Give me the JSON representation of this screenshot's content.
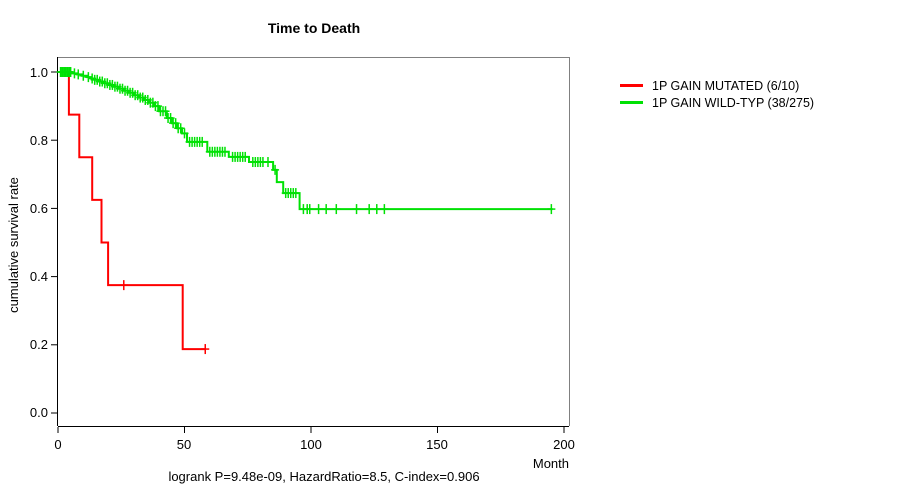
{
  "chart_data": {
    "type": "line",
    "subtype": "kaplan-meier-step",
    "title": "Time to Death",
    "xlabel": "Month",
    "ylabel": "cumulative survival rate",
    "annotation": "logrank P=9.48e-09, HazardRatio=8.5, C-index=0.906",
    "xlim": [
      0,
      200
    ],
    "ylim": [
      0.0,
      1.0
    ],
    "x_ticks": [
      0,
      50,
      100,
      150,
      200
    ],
    "x_tick_labels": [
      "0",
      "50",
      "100",
      "150",
      "200"
    ],
    "y_ticks": [
      0.0,
      0.2,
      0.4,
      0.6,
      0.8,
      1.0
    ],
    "y_tick_labels": [
      "0.0",
      "0.2",
      "0.4",
      "0.6",
      "0.8",
      "1.0"
    ],
    "grid": false,
    "legend_position": "right-outside",
    "series": [
      {
        "name": "1P GAIN MUTATED (6/10)",
        "color": "#ff0000",
        "end_month": 58.5,
        "steps": [
          [
            0,
            1.0
          ],
          [
            4.3,
            0.875
          ],
          [
            8.4,
            0.75
          ],
          [
            13.5,
            0.625
          ],
          [
            17.2,
            0.5
          ],
          [
            19.8,
            0.375
          ],
          [
            49.3,
            0.1875
          ]
        ],
        "censor_months": [
          26,
          58.2
        ]
      },
      {
        "name": "1P GAIN WILD-TYP (38/275)",
        "color": "#00e104",
        "end_month": 195.5,
        "steps": [
          [
            0,
            1.0
          ],
          [
            5.5,
            0.996
          ],
          [
            7.5,
            0.993
          ],
          [
            9.5,
            0.989
          ],
          [
            11.5,
            0.985
          ],
          [
            13,
            0.981
          ],
          [
            14.5,
            0.977
          ],
          [
            16,
            0.972
          ],
          [
            18,
            0.967
          ],
          [
            20,
            0.962
          ],
          [
            22,
            0.957
          ],
          [
            24,
            0.951
          ],
          [
            26,
            0.945
          ],
          [
            28,
            0.939
          ],
          [
            30,
            0.932
          ],
          [
            32,
            0.925
          ],
          [
            34,
            0.918
          ],
          [
            36,
            0.91
          ],
          [
            38,
            0.9
          ],
          [
            40,
            0.885
          ],
          [
            43,
            0.865
          ],
          [
            45,
            0.85
          ],
          [
            47,
            0.835
          ],
          [
            49,
            0.82
          ],
          [
            51,
            0.795
          ],
          [
            59,
            0.766
          ],
          [
            67.5,
            0.751
          ],
          [
            75.5,
            0.736
          ],
          [
            85,
            0.713
          ],
          [
            86.5,
            0.677
          ],
          [
            89,
            0.645
          ],
          [
            95.5,
            0.598
          ]
        ],
        "censor_months": [
          1,
          1.5,
          2,
          2.5,
          3,
          3.5,
          4,
          4.5,
          5,
          6.5,
          8,
          10,
          12,
          13.5,
          14.5,
          15.5,
          16.5,
          17.5,
          18.5,
          19.5,
          20.5,
          21.5,
          22.5,
          23.5,
          24.5,
          25.5,
          26.5,
          27.5,
          28.5,
          29.5,
          30.5,
          31.5,
          32.5,
          33.5,
          34.5,
          35.5,
          36.5,
          37.5,
          38.5,
          39.5,
          40.5,
          41.5,
          42.5,
          43.5,
          44.5,
          45.5,
          46.5,
          47.5,
          48.5,
          50,
          52,
          53,
          54,
          55,
          56,
          57,
          60,
          61,
          62,
          63,
          64,
          65,
          66,
          69,
          70,
          71,
          72,
          73,
          74,
          77,
          78,
          79,
          80,
          81,
          83,
          85.8,
          90,
          91,
          92,
          93,
          94,
          97,
          98.5,
          99.5,
          103,
          106,
          110,
          118,
          123,
          126,
          129,
          195
        ]
      }
    ]
  }
}
